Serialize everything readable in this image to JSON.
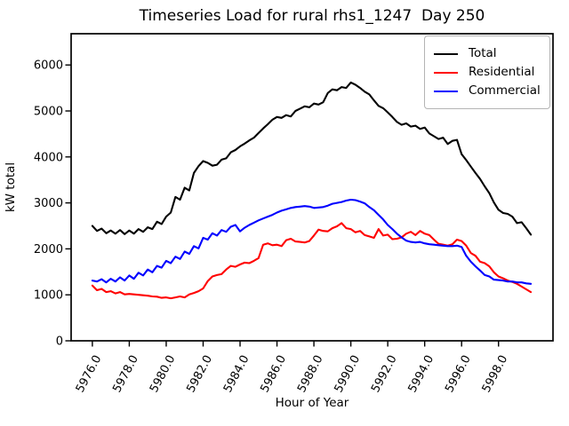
{
  "chart_data": {
    "type": "line",
    "title": "Timeseries Load for rural rhs1_1247  Day 250",
    "xlabel": "Hour of Year",
    "ylabel": "kW total",
    "grid": false,
    "legend_position": "upper right",
    "xlim": [
      5974.85,
      6000.95
    ],
    "ylim": [
      0,
      6680
    ],
    "x_ticks": [
      5976,
      5978,
      5980,
      5982,
      5984,
      5986,
      5988,
      5990,
      5992,
      5994,
      5996,
      5998
    ],
    "x_tick_labels": [
      "5976.0",
      "5978.0",
      "5980.0",
      "5982.0",
      "5984.0",
      "5986.0",
      "5988.0",
      "5990.0",
      "5992.0",
      "5994.0",
      "5996.0",
      "5998.0"
    ],
    "y_ticks": [
      0,
      1000,
      2000,
      3000,
      4000,
      5000,
      6000
    ],
    "y_tick_labels": [
      "0",
      "1000",
      "2000",
      "3000",
      "4000",
      "5000",
      "6000"
    ],
    "x_start": 5976.0,
    "x_step": 0.25,
    "series": [
      {
        "name": "Total",
        "color": "#000000",
        "values": [
          2500,
          2390,
          2440,
          2340,
          2400,
          2330,
          2410,
          2320,
          2400,
          2330,
          2430,
          2370,
          2470,
          2430,
          2590,
          2540,
          2700,
          2790,
          3130,
          3070,
          3330,
          3270,
          3650,
          3800,
          3910,
          3870,
          3810,
          3830,
          3940,
          3970,
          4100,
          4150,
          4230,
          4290,
          4360,
          4420,
          4520,
          4620,
          4710,
          4810,
          4870,
          4850,
          4910,
          4880,
          5000,
          5050,
          5100,
          5080,
          5160,
          5140,
          5190,
          5390,
          5470,
          5450,
          5520,
          5500,
          5620,
          5570,
          5500,
          5420,
          5360,
          5230,
          5110,
          5060,
          4970,
          4870,
          4760,
          4700,
          4730,
          4660,
          4680,
          4610,
          4640,
          4510,
          4450,
          4390,
          4420,
          4280,
          4350,
          4370,
          4060,
          3930,
          3790,
          3650,
          3520,
          3360,
          3210,
          3010,
          2850,
          2780,
          2760,
          2700,
          2560,
          2580,
          2450,
          2310
        ]
      },
      {
        "name": "Residential",
        "color": "#ff0000",
        "values": [
          1200,
          1100,
          1130,
          1060,
          1080,
          1030,
          1060,
          1010,
          1020,
          1010,
          1000,
          990,
          980,
          965,
          960,
          935,
          945,
          925,
          945,
          965,
          945,
          1010,
          1040,
          1080,
          1140,
          1300,
          1400,
          1430,
          1450,
          1550,
          1630,
          1610,
          1660,
          1700,
          1690,
          1740,
          1800,
          2090,
          2120,
          2080,
          2090,
          2060,
          2190,
          2220,
          2160,
          2150,
          2140,
          2170,
          2290,
          2420,
          2390,
          2380,
          2450,
          2490,
          2560,
          2450,
          2430,
          2360,
          2390,
          2300,
          2270,
          2240,
          2430,
          2290,
          2310,
          2210,
          2220,
          2250,
          2330,
          2370,
          2300,
          2390,
          2330,
          2300,
          2200,
          2110,
          2090,
          2070,
          2100,
          2200,
          2170,
          2070,
          1910,
          1850,
          1720,
          1690,
          1620,
          1490,
          1400,
          1360,
          1310,
          1280,
          1240,
          1180,
          1120,
          1060
        ]
      },
      {
        "name": "Commercial",
        "color": "#0000ff",
        "values": [
          1310,
          1290,
          1340,
          1270,
          1350,
          1290,
          1380,
          1310,
          1420,
          1350,
          1480,
          1420,
          1550,
          1490,
          1630,
          1590,
          1740,
          1690,
          1830,
          1780,
          1940,
          1890,
          2060,
          2010,
          2240,
          2200,
          2340,
          2290,
          2410,
          2370,
          2480,
          2520,
          2380,
          2460,
          2520,
          2570,
          2620,
          2660,
          2700,
          2740,
          2790,
          2830,
          2860,
          2890,
          2910,
          2920,
          2930,
          2920,
          2890,
          2900,
          2910,
          2940,
          2980,
          3000,
          3020,
          3050,
          3070,
          3060,
          3030,
          2990,
          2910,
          2840,
          2740,
          2640,
          2520,
          2430,
          2330,
          2250,
          2180,
          2150,
          2140,
          2150,
          2120,
          2100,
          2090,
          2080,
          2070,
          2060,
          2060,
          2070,
          2040,
          1850,
          1720,
          1620,
          1530,
          1430,
          1400,
          1330,
          1320,
          1310,
          1290,
          1290,
          1270,
          1270,
          1250,
          1240
        ]
      }
    ]
  }
}
